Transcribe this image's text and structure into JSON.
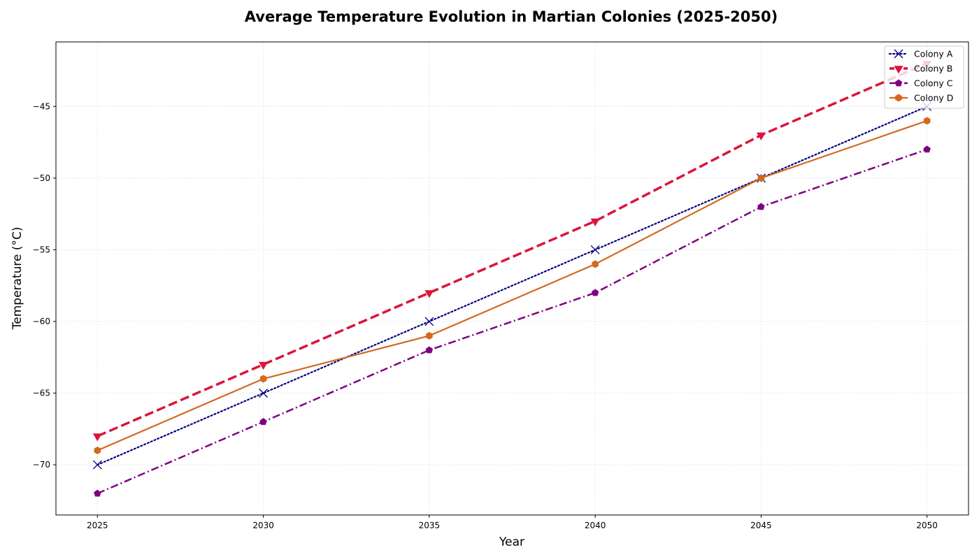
{
  "chart_data": {
    "type": "line",
    "title": "Average Temperature Evolution in Martian Colonies (2025-2050)",
    "xlabel": "Year",
    "ylabel": "Temperature (°C)",
    "x": [
      2025,
      2030,
      2035,
      2040,
      2045,
      2050
    ],
    "xlim": [
      2023.75,
      2051.25
    ],
    "ylim": [
      -73.5,
      -40.5
    ],
    "xticks": [
      "2025",
      "2030",
      "2035",
      "2040",
      "2045",
      "2050"
    ],
    "yticks": [
      -70,
      -65,
      -60,
      -55,
      -50,
      -45
    ],
    "ytick_labels": [
      "−70",
      "−65",
      "−60",
      "−55",
      "−50",
      "−45"
    ],
    "grid": true,
    "legend_position": "top-right",
    "series": [
      {
        "name": "Colony A",
        "values": [
          -70,
          -65,
          -60,
          -55,
          -50,
          -45
        ],
        "color": "#000080",
        "linestyle": "dotted",
        "marker": "x"
      },
      {
        "name": "Colony B",
        "values": [
          -68,
          -63,
          -58,
          -53,
          -47,
          -42
        ],
        "color": "#dc143c",
        "linestyle": "dashed",
        "marker": "triangle-down"
      },
      {
        "name": "Colony C",
        "values": [
          -72,
          -67,
          -62,
          -58,
          -52,
          -48
        ],
        "color": "#800080",
        "linestyle": "dashdot",
        "marker": "pentagon"
      },
      {
        "name": "Colony D",
        "values": [
          -69,
          -64,
          -61,
          -56,
          -50,
          -46
        ],
        "color": "#d2691e",
        "linestyle": "solid",
        "marker": "hexagon"
      }
    ]
  }
}
